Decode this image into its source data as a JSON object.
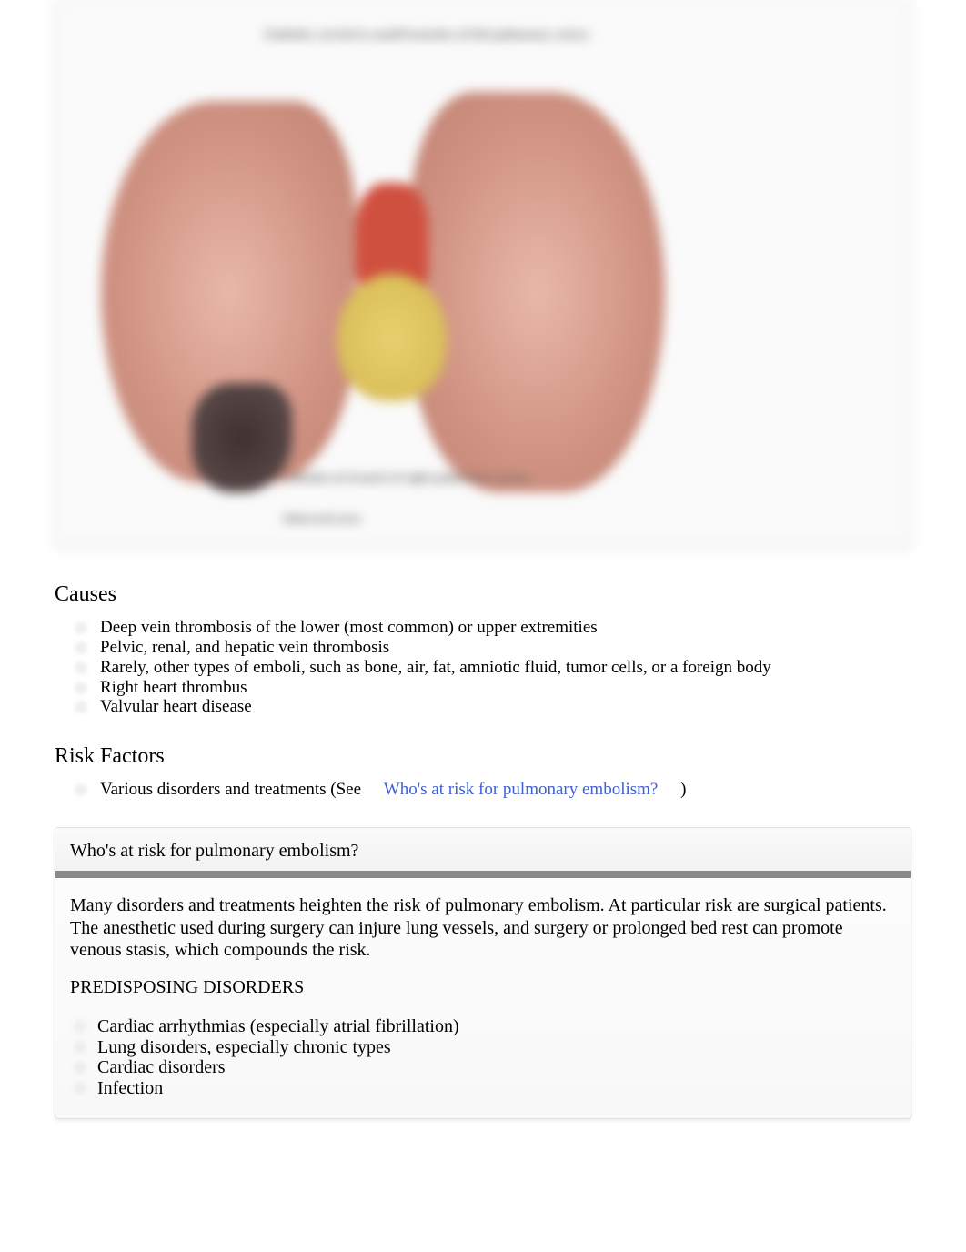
{
  "figure": {
    "label_top": "Embolus carried to small branches\nof left pulmonary artery",
    "label_mid": "Embolus in branch of\nright pulmonary artery",
    "label_bot": "Infarcted area",
    "lung_color": "#d49888",
    "heart_color": "#e8d070",
    "vessel_color": "#d05040",
    "infarct_color": "#403030",
    "border_color": "#e0e0e0"
  },
  "causes": {
    "heading": "Causes",
    "items": [
      "Deep vein thrombosis of the lower (most common) or upper extremities",
      "Pelvic, renal, and hepatic vein thrombosis",
      "Rarely, other types of emboli, such as bone, air, fat, amniotic fluid, tumor cells, or a foreign body",
      "Right heart thrombus",
      "Valvular heart disease"
    ]
  },
  "risk_factors": {
    "heading": "Risk Factors",
    "prefix": "Various disorders and treatments (See ",
    "link_text": "Who's at risk for pulmonary embolism?",
    "suffix": ")"
  },
  "info_box": {
    "header": "Who's at risk for pulmonary embolism?",
    "paragraph": "Many disorders and treatments heighten the risk of pulmonary embolism. At particular risk are surgical patients. The anesthetic used during surgery can injure lung vessels, and surgery or prolonged bed rest can promote venous stasis, which compounds the risk.",
    "subheading": "PREDISPOSING DISORDERS",
    "items": [
      "Cardiac arrhythmias (especially atrial fibrillation)",
      "Lung disorders, especially chronic types",
      "Cardiac disorders",
      "Infection"
    ]
  },
  "styles": {
    "body_font": "Georgia, 'Times New Roman', serif",
    "heading_fontsize": 24,
    "body_fontsize": 19,
    "infobox_fontsize": 20,
    "link_color": "#4060d0",
    "bullet_color": "#f0f0f0",
    "box_border": "#e0e0e0",
    "header_divider_gradient": [
      "#888",
      "#ccc",
      "#888"
    ]
  }
}
